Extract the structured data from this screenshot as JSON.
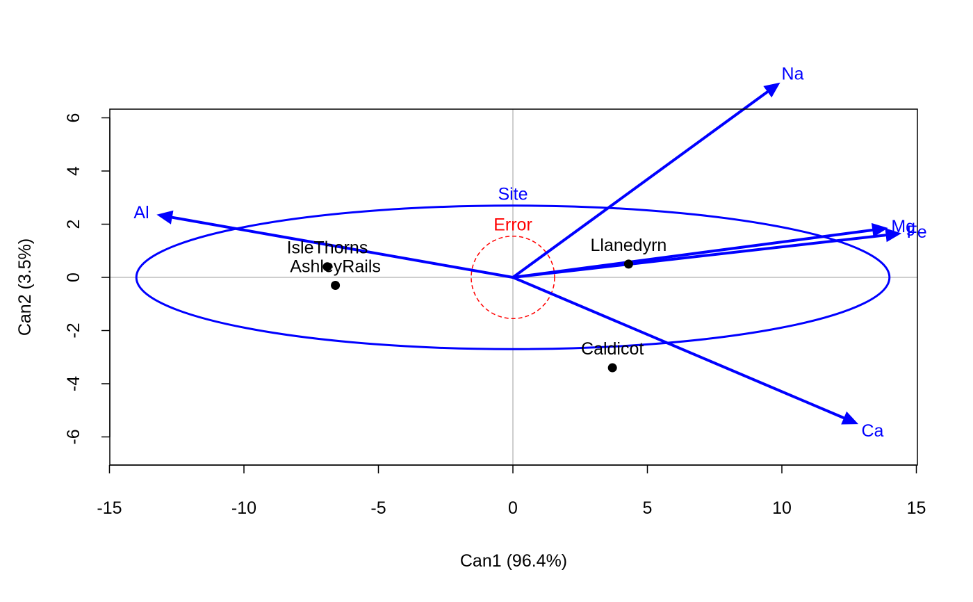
{
  "chart_data": {
    "type": "scatter",
    "title": "",
    "xlabel": "Can1 (96.4%)",
    "ylabel": "Can2 (3.5%)",
    "xlim": [
      -15,
      15
    ],
    "ylim": [
      -7,
      6.3
    ],
    "grid": false,
    "x_ticks": [
      -15,
      -10,
      -5,
      0,
      5,
      10,
      15
    ],
    "y_ticks": [
      -6,
      -4,
      -2,
      0,
      2,
      4,
      6
    ],
    "reference_lines": {
      "x": 0,
      "y": 0,
      "color": "#bebebe"
    },
    "points": [
      {
        "label": "AshleyRails",
        "x": -6.6,
        "y": -0.3
      },
      {
        "label": "IsleThorns",
        "x": -6.9,
        "y": 0.4
      },
      {
        "label": "Llanedyrn",
        "x": 4.3,
        "y": 0.5
      },
      {
        "label": "Caldicot",
        "x": 3.7,
        "y": -3.4
      }
    ],
    "vectors": [
      {
        "label": "Al",
        "x": -13.2,
        "y": 2.35
      },
      {
        "label": "Na",
        "x": 9.9,
        "y": 7.3
      },
      {
        "label": "Mg",
        "x": 13.9,
        "y": 1.85
      },
      {
        "label": "Fe",
        "x": 14.4,
        "y": 1.65
      },
      {
        "label": "Ca",
        "x": 12.8,
        "y": -5.5
      }
    ],
    "ellipses": [
      {
        "label": "Site",
        "rx": 14.0,
        "ry": 2.7,
        "color": "#0000ff",
        "style": "solid"
      },
      {
        "label": "Error",
        "rx": 1.55,
        "ry": 1.55,
        "color": "#ff0000",
        "style": "dashed"
      }
    ],
    "colors": {
      "vectors": "#0000ff",
      "points": "#000000",
      "site": "#0000ff",
      "error": "#ff0000"
    }
  }
}
